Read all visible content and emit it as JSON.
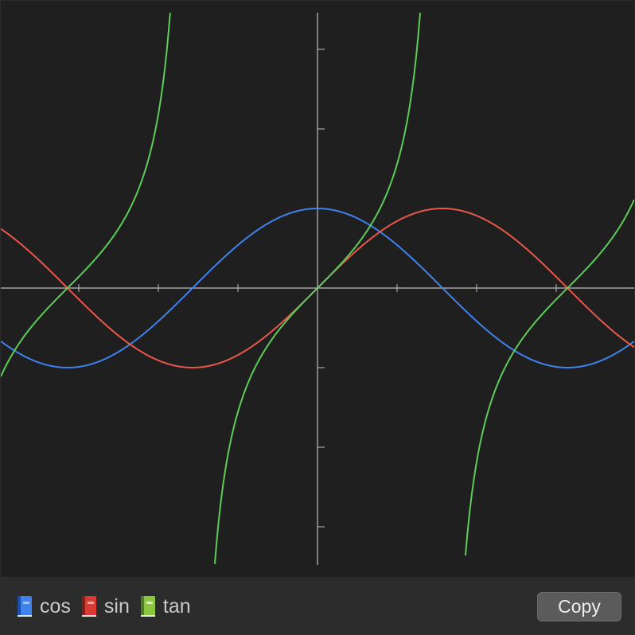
{
  "chart_data": {
    "type": "line",
    "title": "",
    "xlabel": "",
    "ylabel": "",
    "xlim": [
      -4,
      4
    ],
    "ylim": [
      -3.5,
      3.5
    ],
    "x_tick_step": 1,
    "y_tick_step": 1,
    "tick_labels": false,
    "grid": false,
    "legend_placement": "bottom-left",
    "series": [
      {
        "name": "cos",
        "function": "cos",
        "color": "#3f82ee"
      },
      {
        "name": "sin",
        "function": "sin",
        "color": "#e9574b"
      },
      {
        "name": "tan",
        "function": "tan",
        "color": "#5ccd58"
      }
    ]
  },
  "legend": {
    "items": [
      {
        "label": "cos",
        "icon": "blue-book-icon",
        "color": "#3f82ee"
      },
      {
        "label": "sin",
        "icon": "red-book-icon",
        "color": "#d93b32"
      },
      {
        "label": "tan",
        "icon": "green-book-icon",
        "color": "#8cc63f"
      }
    ]
  },
  "toolbar": {
    "copy_label": "Copy"
  },
  "colors": {
    "plot_background": "#1f1f1f",
    "footer_background": "#2c2c2c",
    "axis": "#bdbdbd"
  }
}
